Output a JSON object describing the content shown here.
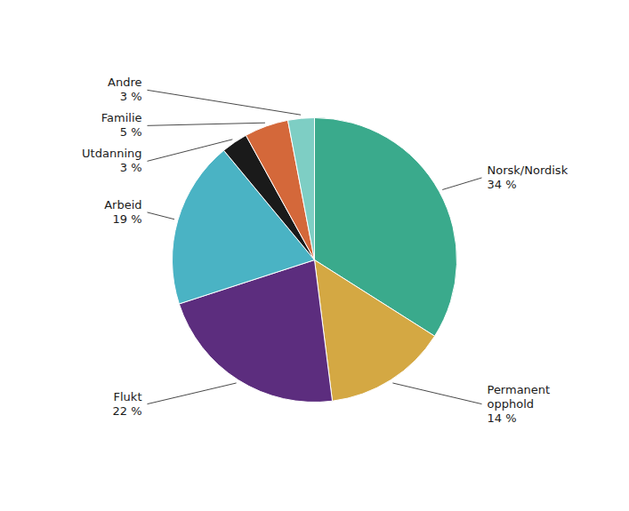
{
  "chart_data": {
    "type": "pie",
    "categories": [
      "Norsk/Nordisk",
      "Permanent\nopphold",
      "Flukt",
      "Arbeid",
      "Utdanning",
      "Familie",
      "Andre"
    ],
    "values": [
      34,
      14,
      22,
      19,
      3,
      5,
      3
    ],
    "value_labels": [
      "34 %",
      "14 %",
      "22 %",
      "19 %",
      "3 %",
      "5 %",
      "3 %"
    ],
    "colors": [
      "#3aaa8c",
      "#d4a843",
      "#5c2d7e",
      "#4ab3c4",
      "#1a1a1a",
      "#d4683a",
      "#7ecec4"
    ],
    "data_labels": true
  }
}
